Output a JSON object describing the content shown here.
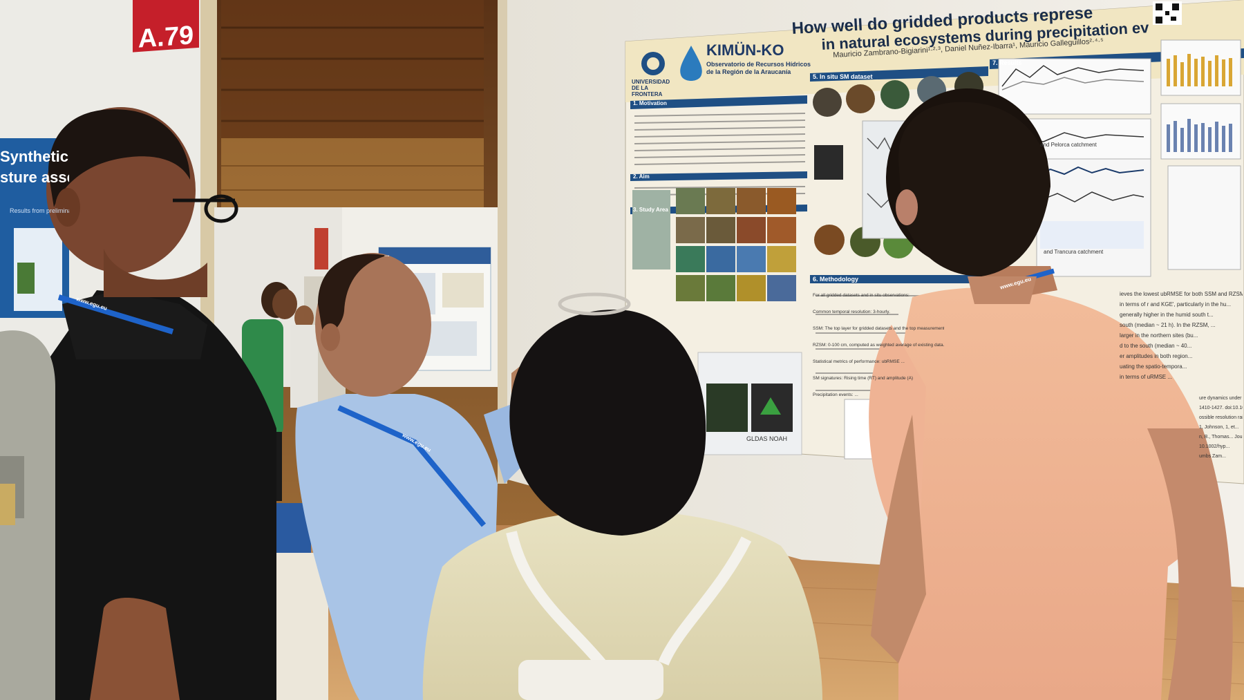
{
  "booth": {
    "sign": "A.79"
  },
  "left_poster": {
    "title_line1": "Synthetic Ap",
    "title_line2": "sture asses",
    "subheading": "Results from preliminary..."
  },
  "main_poster": {
    "title_line1": "How well do gridded products represe",
    "title_line2": "in natural ecosystems during precipitation ev",
    "authors": "Mauricio Zambrano-Bigiarini¹·²·³, Daniel Nuñez-Ibarra¹, Mauricio Galleguillos²·⁴·⁵",
    "university": "UNIVERSIDAD DE LA FRONTERA",
    "logo_name": "KIMÜN-KO",
    "logo_subtitle_1": "Observatorio de Recursos Hídricos",
    "logo_subtitle_2": "de la Región de la Araucanía",
    "sections": {
      "motivation": "1. Motivation",
      "aim": "2. Aim",
      "study_area": "3. Study Area",
      "in_situ": "5. In situ SM dataset",
      "methodology": "6. Methodology",
      "results": "7. Results"
    },
    "methodology_lines": [
      "For all gridded datasets and in situ observations:",
      "Common temporal resolution: 3-hourly.",
      "SSM: The top layer for gridded datasets and the top measurement for in situ observ...",
      "RZSM: 0-100 cm, computed as weighted average of existing data.",
      "Statistical metrics of performance: ubRMSE ...",
      "SM signatures: Rising time (RT) and amplitude (A)",
      "Precipitation events: ..."
    ],
    "results_right_lines": [
      "ieves the lowest ubRMSE for both SSM and RZSM",
      "in terms of r and KGE', particularly in the hu...",
      "generally higher in the humid south t...",
      "south (median ~ 21 h). In the RZSM, ...",
      "larger in the northern sites (bu...",
      "d to the south (median ~ 40...",
      "er amplitudes in both region...",
      "uating the spatio-tempora...",
      "in terms of uRMSE ..."
    ],
    "refs_lines": [
      "ure dynamics under c...",
      "1410-1427. doi:10.10...",
      "ossible resolution rainfa...",
      "1, Johnson, 1, et...",
      "n, B., Thomas... Journa...",
      "10.1002/hyp...",
      "umbs Zam..."
    ],
    "gldas_label": "GLDAS NOAH",
    "catchment_label_1": "and Pelorca catchment",
    "catchment_label_2": "and Trancura catchment"
  },
  "back_poster": {
    "title": "..."
  },
  "lanyard": {
    "text": "www.egu.eu"
  },
  "colors": {
    "poster_header": "#f1e6c2",
    "poster_bg": "#f4efe2",
    "section_bar": "#1f4f84",
    "booth_sign": "#c51f2a",
    "lanyard": "#1e63c9",
    "wall": "#8a5628",
    "floor": "#c99562"
  }
}
